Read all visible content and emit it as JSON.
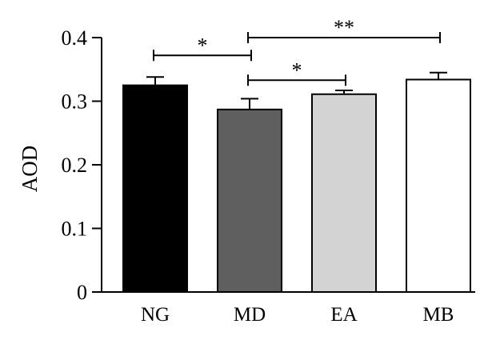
{
  "chart_data": {
    "type": "bar",
    "categories": [
      "NG",
      "MD",
      "EA",
      "MB"
    ],
    "values": [
      0.325,
      0.287,
      0.311,
      0.334
    ],
    "errors": [
      0.013,
      0.017,
      0.006,
      0.011
    ],
    "colors": [
      "#000000",
      "#5f5f5f",
      "#d3d3d3",
      "#ffffff"
    ],
    "title": "",
    "xlabel": "",
    "ylabel": "AOD",
    "ylim": [
      0,
      0.4
    ],
    "yticks": [
      {
        "value": 0,
        "label": "0"
      },
      {
        "value": 0.1,
        "label": "0.1"
      },
      {
        "value": 0.2,
        "label": "0.2"
      },
      {
        "value": 0.3,
        "label": "0.3"
      },
      {
        "value": 0.4,
        "label": "0.4"
      }
    ],
    "grid": false,
    "significance": [
      {
        "from": "NG",
        "to": "MD",
        "level": 0.372,
        "label": "*"
      },
      {
        "from": "MD",
        "to": "MB",
        "level": 0.4,
        "label": "**"
      },
      {
        "from": "MD",
        "to": "EA",
        "level": 0.333,
        "label": "*"
      }
    ]
  }
}
